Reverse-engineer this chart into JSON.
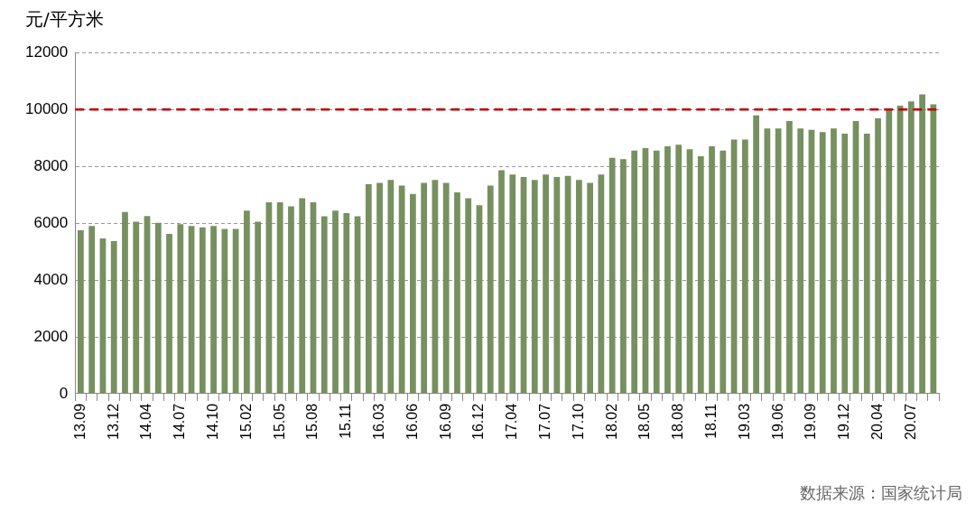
{
  "chart_data": {
    "type": "bar",
    "ylabel": "元/平方米",
    "color": "#76905f",
    "categories": [
      "13.09",
      null,
      null,
      "13.12",
      null,
      null,
      "14.04",
      null,
      null,
      "14.07",
      null,
      null,
      "14.10",
      null,
      null,
      "15.02",
      null,
      null,
      "15.05",
      null,
      null,
      "15.08",
      null,
      null,
      "15.11",
      null,
      null,
      "16.03",
      null,
      null,
      "16.06",
      null,
      null,
      "16.09",
      null,
      null,
      "16.12",
      null,
      null,
      "17.04",
      null,
      null,
      "17.07",
      null,
      null,
      "17.10",
      null,
      null,
      "18.02",
      null,
      null,
      "18.05",
      null,
      null,
      "18.08",
      null,
      null,
      "18.11",
      null,
      null,
      "19.03",
      null,
      null,
      "19.06",
      null,
      null,
      "19.09",
      null,
      null,
      "19.12",
      null,
      null,
      "20.04",
      null,
      null,
      "20.07",
      null,
      null
    ],
    "values": [
      5750,
      5900,
      5460,
      5370,
      6390,
      6050,
      6250,
      6010,
      5620,
      5960,
      5900,
      5850,
      5900,
      5800,
      5800,
      6440,
      6050,
      6730,
      6730,
      6590,
      6880,
      6730,
      6240,
      6440,
      6350,
      6240,
      7370,
      7420,
      7520,
      7320,
      7030,
      7420,
      7520,
      7420,
      7080,
      6880,
      6630,
      7320,
      7860,
      7710,
      7620,
      7520,
      7710,
      7620,
      7660,
      7520,
      7420,
      7710,
      8300,
      8250,
      8550,
      8640,
      8550,
      8700,
      8760,
      8600,
      8350,
      8700,
      8550,
      8940,
      8940,
      9790,
      9330,
      9330,
      9590,
      9330,
      9280,
      9200,
      9330,
      9150,
      9590,
      9150,
      9690,
      9980,
      10130,
      10280,
      10530,
      10180
    ],
    "ylim": [
      0,
      12000
    ],
    "yticks": [
      0,
      2000,
      4000,
      6000,
      8000,
      10000,
      12000
    ],
    "grid": "y",
    "legend": false,
    "ref_lines": [
      {
        "axis": "y",
        "value": 10000,
        "color": "#c00000",
        "line_style": "dashed"
      }
    ],
    "annotations": [
      "数据来源：国家统计局"
    ]
  }
}
